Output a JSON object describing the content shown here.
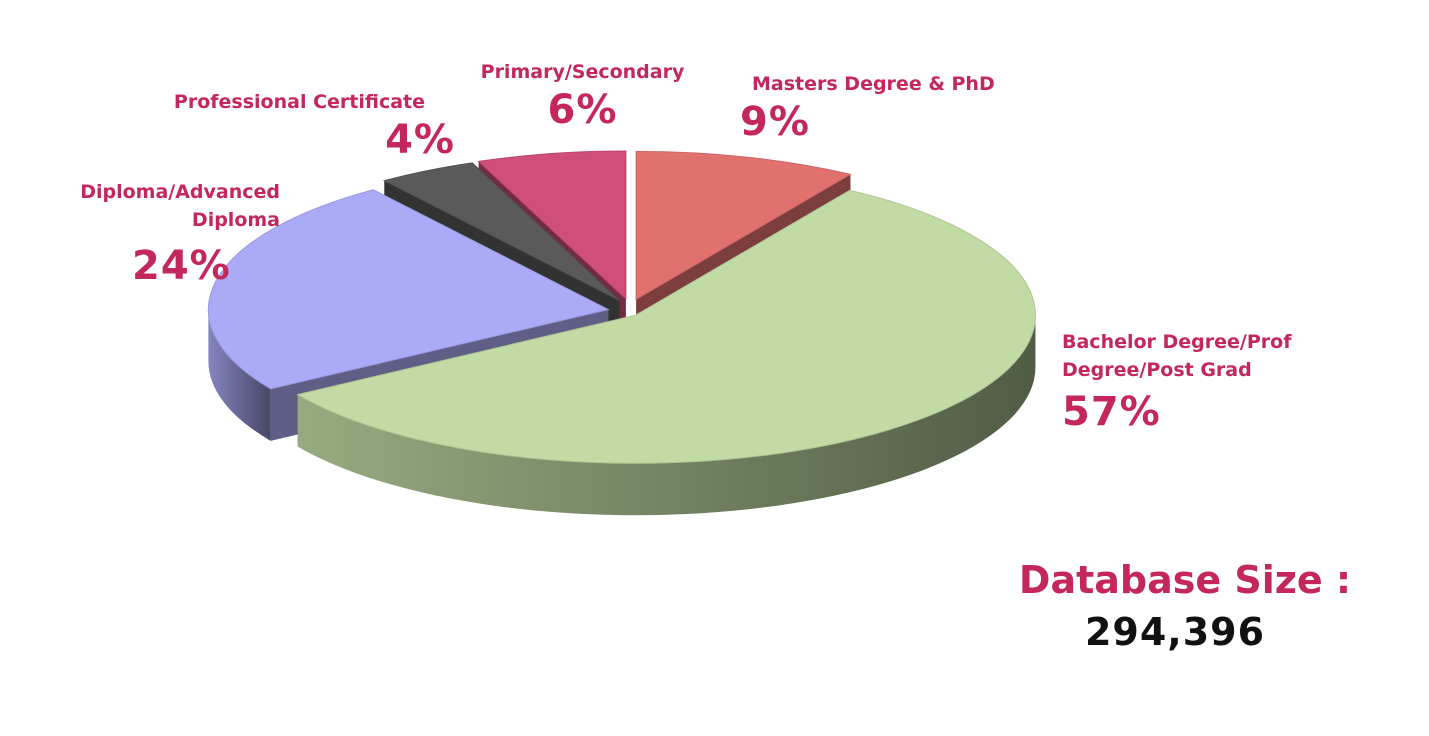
{
  "chart_data": {
    "type": "pie",
    "style": "3d-exploded",
    "slices": [
      {
        "label": "Masters Degree & PhD",
        "value": 9,
        "pct_label": "9%",
        "color": "#e0716f"
      },
      {
        "label": "Bachelor Degree/Prof Degree/Post Grad",
        "value": 57,
        "pct_label": "57%",
        "color": "#c2dba4"
      },
      {
        "label": "Diploma/Advanced Diploma",
        "value": 24,
        "pct_label": "24%",
        "color": "#aaaaf6"
      },
      {
        "label": "Professional Certificate",
        "value": 4,
        "pct_label": "4%",
        "color": "#5a5a5a"
      },
      {
        "label": "Primary/Secondary",
        "value": 6,
        "pct_label": "6%",
        "color": "#d04e7a"
      }
    ],
    "label_color": "#c4265e",
    "legend": "none"
  },
  "labels": {
    "masters": {
      "line1": "Masters Degree & PhD",
      "pct": "9%"
    },
    "bachelor": {
      "line1": "Bachelor Degree/Prof",
      "line2": "Degree/Post Grad",
      "pct": "57%"
    },
    "diploma": {
      "line1": "Diploma/Advanced",
      "line2": "Diploma",
      "pct": "24%"
    },
    "professional": {
      "line1": "Professional Certificate",
      "pct": "4%"
    },
    "primary": {
      "line1": "Primary/Secondary",
      "pct": "6%"
    }
  },
  "database": {
    "title": "Database Size :",
    "value": "294,396"
  }
}
